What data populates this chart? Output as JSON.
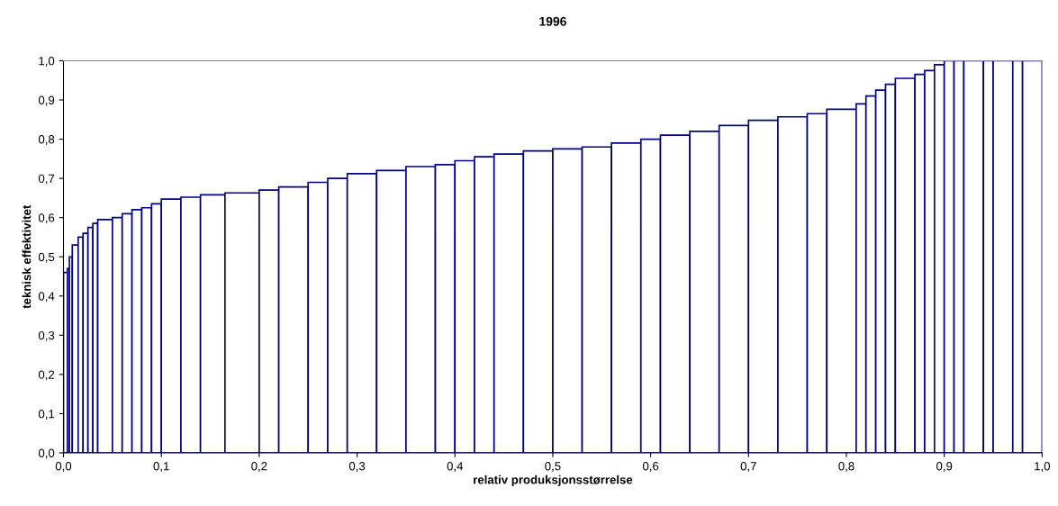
{
  "chart_data": {
    "type": "histogram",
    "title": "1996",
    "xlabel": "relativ produksjonsstørrelse",
    "ylabel": "teknisk effektivitet",
    "bins": [
      0.0,
      0.004,
      0.006,
      0.009,
      0.015,
      0.02,
      0.025,
      0.03,
      0.035,
      0.05,
      0.06,
      0.07,
      0.08,
      0.09,
      0.1,
      0.12,
      0.14,
      0.165,
      0.2,
      0.22,
      0.25,
      0.27,
      0.29,
      0.32,
      0.35,
      0.38,
      0.4,
      0.42,
      0.44,
      0.47,
      0.5,
      0.53,
      0.56,
      0.59,
      0.61,
      0.64,
      0.67,
      0.7,
      0.73,
      0.76,
      0.78,
      0.81,
      0.82,
      0.83,
      0.84,
      0.85,
      0.87,
      0.88,
      0.89,
      0.9,
      0.91,
      0.92,
      0.94,
      0.95,
      0.97,
      0.98,
      1.0
    ],
    "values": [
      0.46,
      0.47,
      0.5,
      0.53,
      0.55,
      0.56,
      0.575,
      0.585,
      0.595,
      0.6,
      0.61,
      0.62,
      0.625,
      0.635,
      0.647,
      0.652,
      0.658,
      0.663,
      0.67,
      0.678,
      0.69,
      0.7,
      0.712,
      0.72,
      0.73,
      0.735,
      0.745,
      0.755,
      0.762,
      0.77,
      0.775,
      0.78,
      0.79,
      0.8,
      0.81,
      0.82,
      0.835,
      0.848,
      0.857,
      0.865,
      0.876,
      0.89,
      0.91,
      0.925,
      0.94,
      0.955,
      0.965,
      0.975,
      0.99,
      1.0,
      1.0,
      1.0,
      1.0,
      1.0,
      1.0,
      1.0
    ],
    "color": "#000080",
    "xlim": [
      0,
      1
    ],
    "ylim": [
      0,
      1
    ],
    "xticks": [
      {
        "value": 0,
        "label": "0,0"
      },
      {
        "value": 0.1,
        "label": "0,1"
      },
      {
        "value": 0.2,
        "label": "0,2"
      },
      {
        "value": 0.3,
        "label": "0,3"
      },
      {
        "value": 0.4,
        "label": "0,4"
      },
      {
        "value": 0.5,
        "label": "0,5"
      },
      {
        "value": 0.6,
        "label": "0,6"
      },
      {
        "value": 0.7,
        "label": "0,7"
      },
      {
        "value": 0.8,
        "label": "0,8"
      },
      {
        "value": 0.9,
        "label": "0,9"
      },
      {
        "value": 1,
        "label": "1,0"
      }
    ],
    "yticks": [
      {
        "value": 0,
        "label": "0,0"
      },
      {
        "value": 0.1,
        "label": "0,1"
      },
      {
        "value": 0.2,
        "label": "0,2"
      },
      {
        "value": 0.3,
        "label": "0,3"
      },
      {
        "value": 0.4,
        "label": "0,4"
      },
      {
        "value": 0.5,
        "label": "0,5"
      },
      {
        "value": 0.6,
        "label": "0,6"
      },
      {
        "value": 0.7,
        "label": "0,7"
      },
      {
        "value": 0.8,
        "label": "0,8"
      },
      {
        "value": 0.9,
        "label": "0,9"
      },
      {
        "value": 1,
        "label": "1,0"
      }
    ],
    "grid": false
  }
}
